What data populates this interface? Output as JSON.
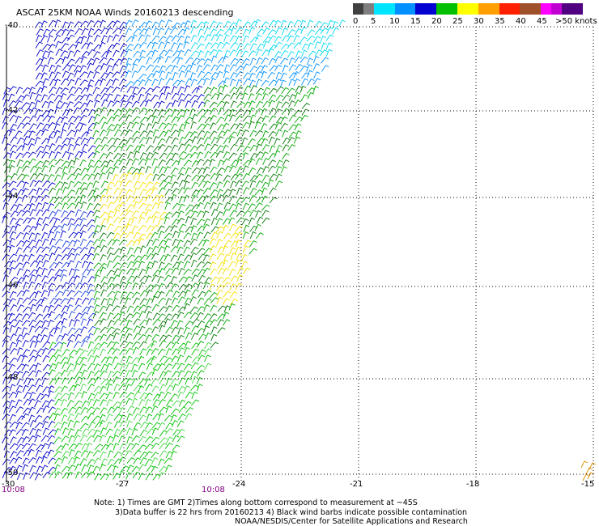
{
  "title": "ASCAT 25KM NOAA Winds 20160213 descending",
  "legend": {
    "colors": [
      "#404040",
      "#7f7f7f",
      "#00e5ff",
      "#0090ff",
      "#0000d0",
      "#00c000",
      "#ffff00",
      "#ffa000",
      "#ff2000",
      "#d00000",
      "#a05028",
      "#ff00ff",
      "#c000d0",
      "#500080"
    ],
    "labels": [
      "0",
      "5",
      "10",
      "15",
      "20",
      "25",
      "30",
      "35",
      "40",
      "45",
      ">50 knots"
    ]
  },
  "map": {
    "lon_min": -30,
    "lon_max": -15,
    "lat_min": -50,
    "lat_max": -40,
    "lat_labels": [
      "-40",
      "-42",
      "-44",
      "-46",
      "-48",
      "-50"
    ],
    "lon_labels": [
      "-30",
      "-27",
      "-24",
      "-21",
      "-18",
      "-15"
    ],
    "grid": true
  },
  "times": [
    "10:08",
    "10:08"
  ],
  "notes": [
    "Note: 1) Times are GMT 2)Times along bottom correspond to measurement at ~45S",
    "3)Data buffer is 22 hrs from 20160213 4) Black wind barbs indicate possible contamination",
    "NOAA/NESDIS/Center for Satellite Applications and Research"
  ]
}
